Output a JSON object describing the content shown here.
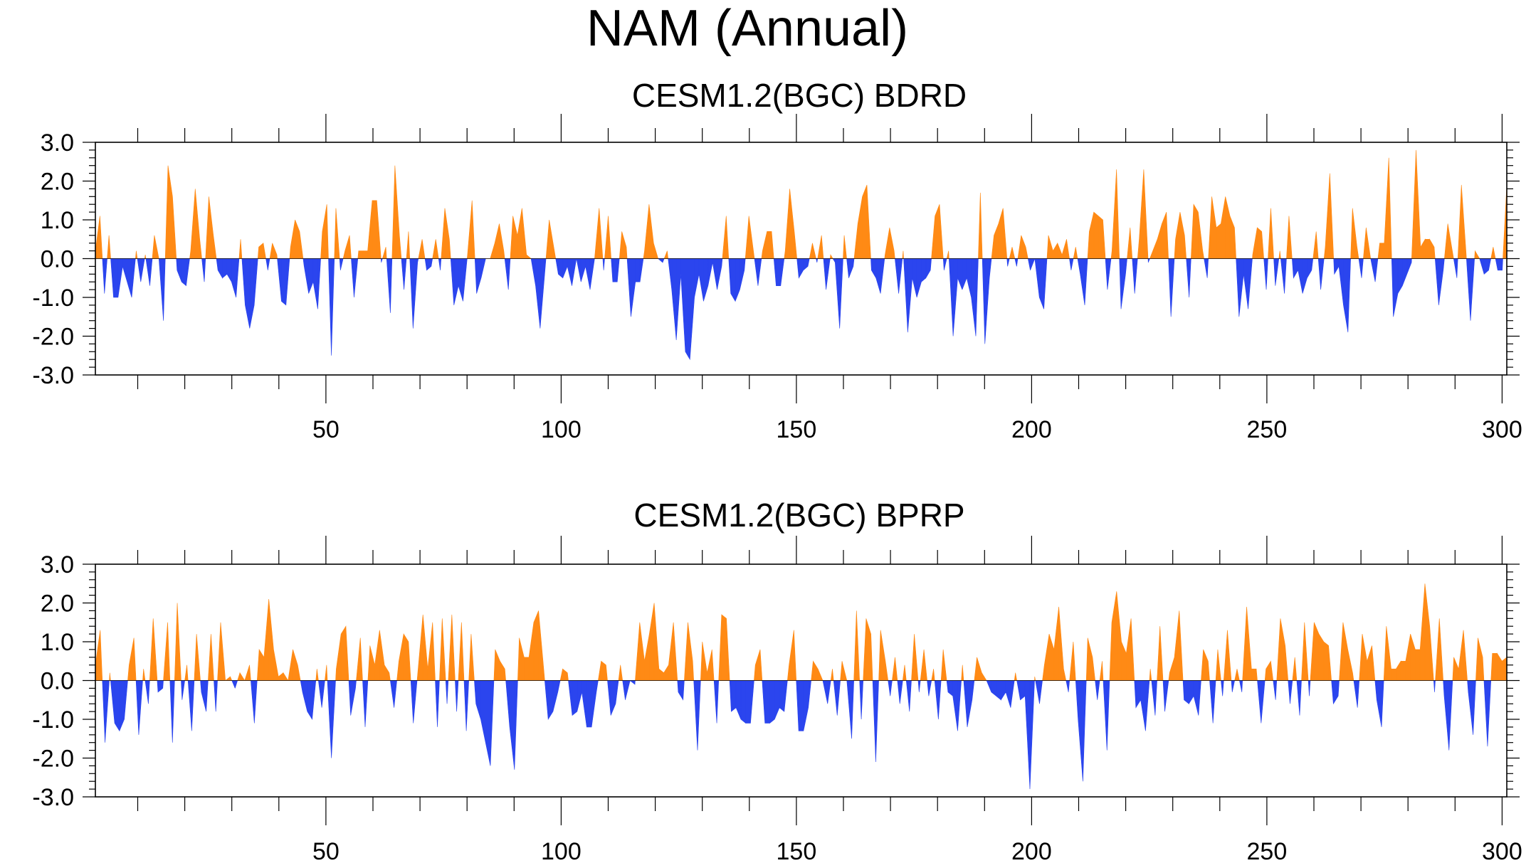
{
  "title": "NAM (Annual)",
  "colors": {
    "positive": "#FF8A15",
    "negative": "#2B45EE",
    "frame": "#000000"
  },
  "chart_data": [
    {
      "type": "area",
      "title": "CESM1.2(BGC) BDRD",
      "x_range": [
        1,
        301
      ],
      "ylim": [
        -3,
        3
      ],
      "y_ticks": [
        "-3.0",
        "-2.0",
        "-1.0",
        "0.0",
        "1.0",
        "2.0",
        "3.0"
      ],
      "x_ticks": [
        "50",
        "100",
        "150",
        "200",
        "250",
        "300"
      ],
      "x_tick_values": [
        50,
        100,
        150,
        200,
        250,
        300
      ],
      "values": [
        0.2,
        1.1,
        -0.9,
        0.6,
        -1.0,
        -1.0,
        -0.2,
        -0.6,
        -1.0,
        0.2,
        -0.6,
        0.1,
        -0.7,
        0.6,
        0.0,
        -1.6,
        2.4,
        1.6,
        -0.3,
        -0.6,
        -0.7,
        0.2,
        1.8,
        0.5,
        -0.6,
        1.6,
        0.6,
        -0.3,
        -0.5,
        -0.4,
        -0.6,
        -1.0,
        0.5,
        -1.2,
        -1.8,
        -1.2,
        0.3,
        0.4,
        -0.3,
        0.4,
        0.1,
        -1.1,
        -1.2,
        0.3,
        1.0,
        0.7,
        -0.2,
        -0.9,
        -0.6,
        -1.3,
        0.7,
        1.4,
        -2.5,
        1.3,
        -0.3,
        0.2,
        0.6,
        -1.0,
        0.2,
        0.2,
        0.2,
        1.5,
        1.5,
        -0.1,
        0.3,
        -1.4,
        2.4,
        0.6,
        -0.8,
        0.7,
        -1.8,
        -0.1,
        0.5,
        -0.3,
        -0.2,
        0.5,
        -0.3,
        1.3,
        0.5,
        -1.2,
        -0.7,
        -1.1,
        0.1,
        1.5,
        -0.9,
        -0.5,
        0.0,
        0.0,
        0.4,
        0.9,
        0.2,
        -0.8,
        1.1,
        0.6,
        1.3,
        0.1,
        0.0,
        -0.7,
        -1.8,
        -0.4,
        1.0,
        0.3,
        -0.4,
        -0.5,
        -0.2,
        -0.7,
        0.0,
        -0.6,
        -0.2,
        -0.8,
        0.0,
        1.3,
        -0.3,
        1.1,
        -0.6,
        -0.6,
        0.7,
        0.3,
        -1.5,
        -0.6,
        -0.6,
        0.2,
        1.4,
        0.4,
        0.0,
        -0.1,
        0.2,
        -0.8,
        -2.1,
        -0.4,
        -2.4,
        -2.6,
        -1.0,
        -0.4,
        -1.1,
        -0.7,
        -0.1,
        -0.8,
        -0.2,
        1.1,
        -0.9,
        -1.1,
        -0.8,
        -0.3,
        1.1,
        0.2,
        -0.7,
        0.2,
        0.7,
        0.7,
        -0.7,
        -0.7,
        0.2,
        1.8,
        0.7,
        -0.5,
        -0.3,
        -0.2,
        0.4,
        -0.1,
        0.6,
        -0.8,
        0.1,
        -0.1,
        -1.8,
        0.6,
        -0.5,
        -0.2,
        0.9,
        1.6,
        1.9,
        -0.3,
        -0.5,
        -0.9,
        0.1,
        0.8,
        0.2,
        -0.9,
        0.2,
        -1.9,
        -0.5,
        -1.0,
        -0.6,
        -0.5,
        -0.3,
        1.1,
        1.4,
        -0.3,
        0.2,
        -2.0,
        -0.5,
        -0.8,
        -0.5,
        -1.0,
        -2.0,
        1.7,
        -2.2,
        -0.5,
        0.6,
        0.9,
        1.3,
        -0.2,
        0.3,
        -0.2,
        0.6,
        0.3,
        -0.3,
        0.0,
        -1.0,
        -1.3,
        0.6,
        0.2,
        0.4,
        0.1,
        0.5,
        -0.3,
        0.3,
        -0.4,
        -1.2,
        0.7,
        1.2,
        1.1,
        1.0,
        -0.8,
        0.2,
        2.3,
        -1.3,
        -0.4,
        0.8,
        -0.9,
        0.5,
        2.3,
        -0.1,
        0.2,
        0.5,
        0.9,
        1.2,
        -1.5,
        0.5,
        1.2,
        0.6,
        -1.0,
        1.4,
        1.2,
        0.2,
        -0.5,
        1.6,
        0.8,
        0.9,
        1.6,
        1.1,
        0.8,
        -1.5,
        -0.4,
        -1.3,
        0.1,
        0.8,
        0.7,
        -0.8,
        1.3,
        -0.7,
        0.2,
        -0.9,
        1.1,
        -0.5,
        -0.3,
        -0.9,
        -0.5,
        -0.3,
        0.7,
        -0.8,
        0.3,
        2.2,
        -0.4,
        -0.2,
        -1.2,
        -1.9,
        1.3,
        0.3,
        -0.5,
        0.8,
        0.0,
        -0.6,
        0.4,
        0.4,
        2.6,
        -1.5,
        -0.9,
        -0.7,
        -0.4,
        -0.1,
        2.8,
        0.3,
        0.5,
        0.5,
        0.3,
        -1.2,
        -0.3,
        0.9,
        0.2,
        -0.5,
        1.9,
        0.2,
        -1.6,
        0.2,
        0.0,
        -0.4,
        -0.3,
        0.3,
        -0.3,
        -0.3,
        1.9
      ]
    },
    {
      "type": "area",
      "title": "CESM1.2(BGC) BPRP",
      "x_range": [
        1,
        301
      ],
      "ylim": [
        -3,
        3
      ],
      "y_ticks": [
        "-3.0",
        "-2.0",
        "-1.0",
        "0.0",
        "1.0",
        "2.0",
        "3.0"
      ],
      "x_ticks": [
        "50",
        "100",
        "150",
        "200",
        "250",
        "300"
      ],
      "x_tick_values": [
        50,
        100,
        150,
        200,
        250,
        300
      ],
      "values": [
        0.4,
        1.3,
        -1.6,
        0.2,
        -1.1,
        -1.3,
        -1.0,
        0.4,
        1.1,
        -1.4,
        0.3,
        -0.6,
        1.6,
        -0.3,
        -0.2,
        1.5,
        -1.6,
        2.0,
        -0.5,
        0.4,
        -1.3,
        1.2,
        -0.3,
        -0.8,
        1.2,
        -0.8,
        1.5,
        0.0,
        0.1,
        -0.2,
        0.2,
        0.0,
        0.4,
        -1.1,
        0.8,
        0.6,
        2.1,
        0.8,
        0.1,
        0.2,
        0.0,
        0.8,
        0.4,
        -0.3,
        -0.8,
        -1.0,
        0.3,
        -0.7,
        0.4,
        -2.0,
        0.3,
        1.2,
        1.4,
        -0.9,
        -0.2,
        1.1,
        -1.2,
        0.9,
        0.4,
        1.3,
        0.4,
        0.2,
        -0.7,
        0.5,
        1.2,
        1.0,
        -1.1,
        0.3,
        1.7,
        0.3,
        1.5,
        -1.2,
        1.6,
        -0.6,
        1.7,
        -0.8,
        1.5,
        -1.3,
        1.2,
        -0.6,
        -1.0,
        -1.6,
        -2.2,
        0.8,
        0.5,
        0.3,
        -1.2,
        -2.3,
        1.1,
        0.6,
        0.6,
        1.5,
        1.8,
        0.4,
        -1.0,
        -0.8,
        -0.3,
        0.3,
        0.2,
        -0.9,
        -0.8,
        -0.3,
        -1.2,
        -1.2,
        -0.3,
        0.5,
        0.4,
        -0.9,
        -0.6,
        0.4,
        -0.5,
        0.0,
        -0.1,
        1.5,
        0.5,
        1.2,
        2.0,
        0.3,
        0.2,
        0.4,
        1.5,
        -0.3,
        -0.5,
        1.5,
        0.5,
        -1.8,
        1.0,
        0.2,
        0.8,
        -1.1,
        1.7,
        1.6,
        -0.8,
        -0.7,
        -1.0,
        -1.1,
        -1.1,
        0.4,
        0.8,
        -1.1,
        -1.1,
        -1.0,
        -0.7,
        -0.8,
        0.4,
        1.3,
        -1.3,
        -1.3,
        -0.7,
        0.5,
        0.3,
        0.0,
        -0.6,
        0.3,
        -0.9,
        0.5,
        0.0,
        -1.5,
        1.8,
        -1.0,
        1.6,
        1.2,
        -2.1,
        1.3,
        0.5,
        -0.4,
        0.6,
        -0.6,
        0.4,
        -0.8,
        1.2,
        -0.3,
        0.8,
        -0.4,
        0.3,
        -1.0,
        0.8,
        -0.3,
        -0.4,
        -1.3,
        0.4,
        -1.2,
        -0.5,
        0.6,
        0.2,
        0.0,
        -0.3,
        -0.4,
        -0.5,
        -0.3,
        -0.7,
        0.2,
        -0.5,
        -0.4,
        -2.8,
        0.1,
        -0.6,
        0.4,
        1.2,
        0.8,
        1.9,
        0.3,
        -0.3,
        1.0,
        -1.0,
        -2.6,
        1.1,
        0.6,
        -0.5,
        0.5,
        -1.8,
        1.5,
        2.3,
        1.0,
        0.7,
        1.6,
        -0.7,
        -0.5,
        -1.3,
        0.3,
        -0.9,
        1.4,
        -0.8,
        0.2,
        0.6,
        1.8,
        -0.5,
        -0.6,
        -0.4,
        -0.9,
        0.8,
        0.5,
        -1.1,
        0.8,
        -0.4,
        1.3,
        -0.3,
        0.3,
        -0.3,
        1.9,
        0.3,
        0.3,
        -1.1,
        0.3,
        0.5,
        -0.5,
        1.6,
        0.9,
        -0.6,
        0.6,
        -0.9,
        1.5,
        -0.4,
        1.5,
        1.2,
        1.0,
        0.9,
        -0.6,
        -0.4,
        1.5,
        0.8,
        0.2,
        -0.7,
        1.2,
        0.5,
        0.9,
        -0.5,
        -1.2,
        1.4,
        0.3,
        0.3,
        0.5,
        0.5,
        1.2,
        0.8,
        0.8,
        2.5,
        1.4,
        -0.3,
        1.6,
        -0.4,
        -1.8,
        0.6,
        0.3,
        1.3,
        -0.3,
        -1.4,
        1.1,
        0.6,
        -1.7,
        0.7,
        0.7,
        0.5,
        0.6
      ]
    }
  ]
}
